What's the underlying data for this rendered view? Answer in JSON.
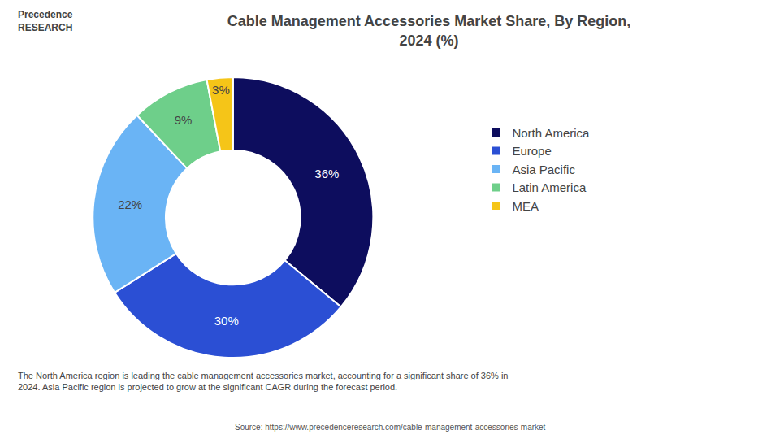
{
  "chart_data": {
    "type": "donut",
    "title": "Cable Management Accessories Market Share, By Region,\n2024 (%)",
    "categories": [
      "North America",
      "Europe",
      "Asia Pacific",
      "Latin America",
      "MEA"
    ],
    "values": [
      36,
      30,
      22,
      9,
      3
    ],
    "value_labels": [
      "36%",
      "30%",
      "22%",
      "9%",
      "3%"
    ],
    "colors": [
      "#0d0d5e",
      "#2b4fd4",
      "#6ab4f5",
      "#6ecf8a",
      "#f5c518"
    ],
    "data_labels": true,
    "legend": "right",
    "annotations": [
      "Precedence\nRESEARCH",
      "The North America region is leading the cable management accessories market, accounting for a significant share of 36% in\n2024. Asia Pacific region is projected to grow at the significant CAGR during the forecast period.",
      "Source: https://www.precedenceresearch.com/cable-management-accessories-market"
    ]
  }
}
